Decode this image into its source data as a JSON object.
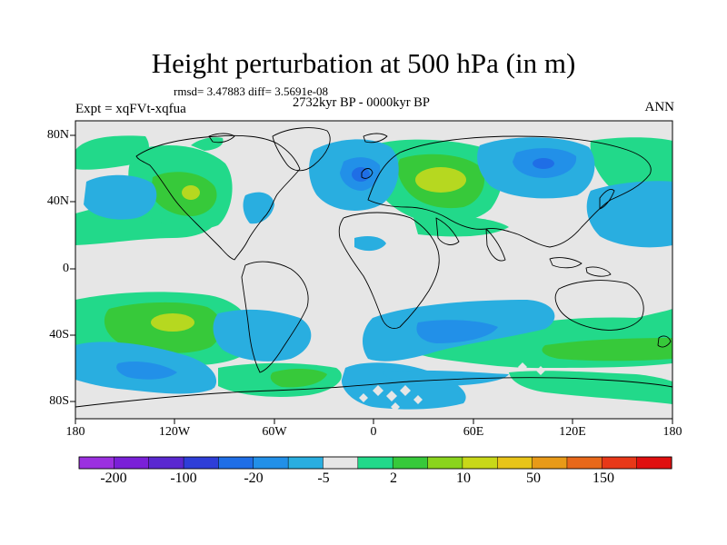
{
  "title": "Height perturbation at 500 hPa (in m)",
  "stats": "rmsd= 3.47883 diff= 3.5691e-08",
  "period": "2732kyr BP - 0000kyr BP",
  "experiment": "Expt = xqFVt-xqfua",
  "season": "ANN",
  "lat_labels": [
    "80N",
    "40N",
    "0",
    "40S",
    "80S"
  ],
  "lon_labels": [
    "180",
    "120W",
    "60W",
    "0",
    "60E",
    "120E",
    "180"
  ],
  "colorbar": {
    "colors": [
      "#9b30e0",
      "#7a20d8",
      "#5a28d0",
      "#2e3ed8",
      "#1f6ee6",
      "#2290e8",
      "#29aee0",
      "#e6e6e6",
      "#22d98a",
      "#37c93a",
      "#8ad41d",
      "#c8d818",
      "#e8c418",
      "#e89a18",
      "#e8681a",
      "#e83818",
      "#e01010"
    ],
    "labels": [
      "-200",
      "-100",
      "-20",
      "-5",
      "2",
      "10",
      "50",
      "150"
    ]
  },
  "map_colors": {
    "background": "#e6e6e6",
    "light_blue": "#29aee0",
    "mid_blue": "#2290e8",
    "dark_blue": "#1f6ee6",
    "green": "#22d98a",
    "mid_green": "#37c93a",
    "yellow_green": "#b6d820",
    "coast": "#000000"
  }
}
